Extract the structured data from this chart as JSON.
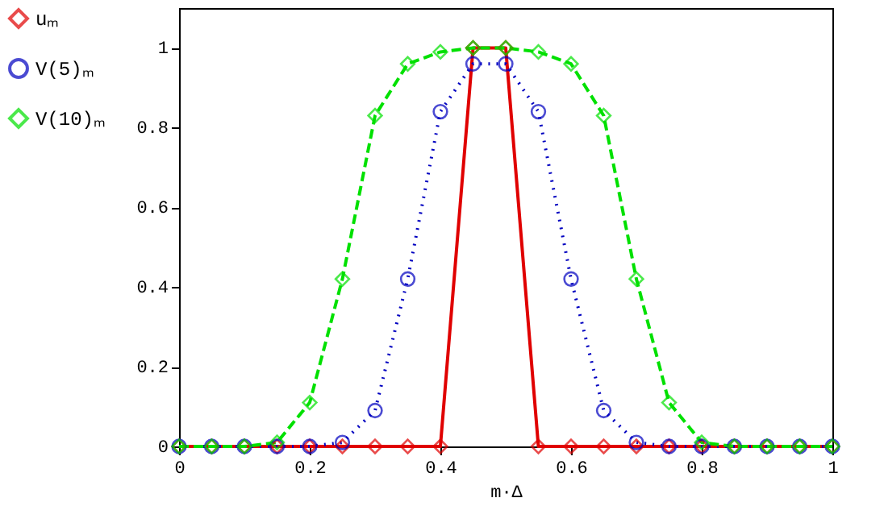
{
  "chart_data": {
    "type": "line",
    "xlabel": "m·Δ",
    "x": [
      0,
      0.05,
      0.1,
      0.15,
      0.2,
      0.25,
      0.3,
      0.35,
      0.4,
      0.45,
      0.5,
      0.55,
      0.6,
      0.65,
      0.7,
      0.75,
      0.8,
      0.85,
      0.9,
      0.95,
      1
    ],
    "series": [
      {
        "name": "uₘ",
        "color": "#e00000",
        "line_style": "solid",
        "marker": "diamond",
        "values": [
          0,
          0,
          0,
          0,
          0,
          0,
          0,
          0,
          0,
          1,
          1,
          0,
          0,
          0,
          0,
          0,
          0,
          0,
          0,
          0,
          0
        ]
      },
      {
        "name": "V(5)ₘ",
        "color": "#0000c0",
        "line_style": "dotted",
        "marker": "circle",
        "values": [
          0,
          0,
          0,
          0,
          0,
          0.01,
          0.09,
          0.42,
          0.84,
          0.96,
          0.96,
          0.84,
          0.42,
          0.09,
          0.01,
          0,
          0,
          0,
          0,
          0,
          0
        ]
      },
      {
        "name": "V(10)ₘ",
        "color": "#00e000",
        "line_style": "dashed",
        "marker": "diamond",
        "values": [
          0,
          0,
          0,
          0.01,
          0.11,
          0.42,
          0.83,
          0.96,
          0.99,
          1,
          1,
          0.99,
          0.96,
          0.83,
          0.42,
          0.11,
          0.01,
          0,
          0,
          0,
          0
        ]
      }
    ],
    "xlim": [
      0,
      1
    ],
    "xticks": [
      0,
      0.2,
      0.4,
      0.6,
      0.8,
      1
    ],
    "ylim": [
      0,
      1.1
    ],
    "yticks": [
      0,
      0.2,
      0.4,
      0.6,
      0.8,
      1
    ],
    "grid": false,
    "legend": "left"
  }
}
